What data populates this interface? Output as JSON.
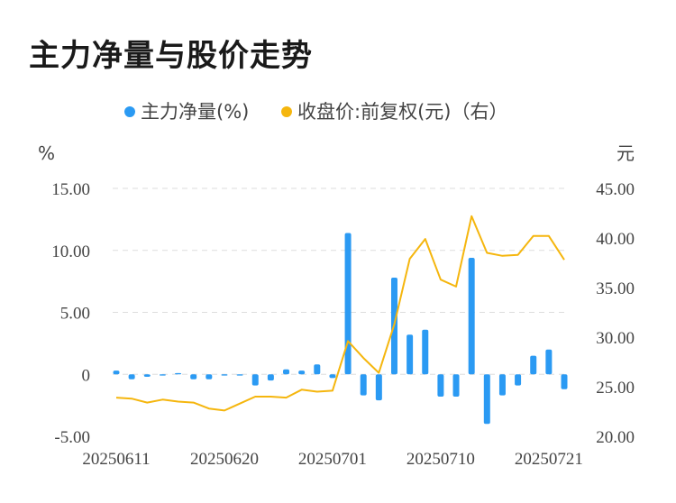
{
  "title": "主力净量与股价走势",
  "chart_data": {
    "type": "bar+line",
    "legend": [
      {
        "name": "主力净量(%)",
        "color": "#2b9af3"
      },
      {
        "name": "收盘价:前复权(元)（右）",
        "color": "#f5b60e"
      }
    ],
    "left_axis": {
      "unit": "%",
      "ticks": [
        "15.00",
        "10.00",
        "5.00",
        "0",
        "-5.00"
      ],
      "min": -5,
      "max": 15
    },
    "right_axis": {
      "unit": "元",
      "ticks": [
        "45.00",
        "40.00",
        "35.00",
        "30.00",
        "25.00",
        "20.00"
      ],
      "min": 20,
      "max": 45
    },
    "x_tick_labels": [
      "20250611",
      "20250620",
      "20250701",
      "20250710",
      "20250721"
    ],
    "x_tick_indices": [
      0,
      7,
      14,
      21,
      28
    ],
    "dates": [
      "20250611",
      "20250612",
      "20250613",
      "20250616",
      "20250617",
      "20250618",
      "20250619",
      "20250620",
      "20250623",
      "20250624",
      "20250625",
      "20250626",
      "20250627",
      "20250630",
      "20250701",
      "20250702",
      "20250703",
      "20250704",
      "20250707",
      "20250708",
      "20250709",
      "20250710",
      "20250711",
      "20250714",
      "20250715",
      "20250716",
      "20250717",
      "20250718",
      "20250721",
      "20250722"
    ],
    "series": [
      {
        "name": "主力净量(%)",
        "type": "bar",
        "axis": "left",
        "values": [
          0.3,
          -0.4,
          -0.2,
          -0.1,
          0.1,
          -0.4,
          -0.4,
          -0.1,
          -0.1,
          -0.9,
          -0.5,
          0.4,
          0.3,
          0.8,
          -0.3,
          11.4,
          -1.7,
          -2.1,
          7.8,
          3.2,
          3.6,
          -1.8,
          -1.8,
          9.4,
          -4.0,
          -1.7,
          -0.9,
          1.5,
          2.0,
          -1.2
        ]
      },
      {
        "name": "收盘价:前复权(元)（右）",
        "type": "line",
        "axis": "right",
        "values": [
          23.9,
          23.8,
          23.4,
          23.7,
          23.5,
          23.4,
          22.8,
          22.6,
          23.3,
          24.0,
          24.0,
          23.9,
          24.7,
          24.5,
          24.6,
          29.6,
          27.9,
          26.4,
          31.3,
          37.9,
          39.9,
          35.8,
          35.1,
          42.2,
          38.5,
          38.2,
          38.3,
          40.2,
          40.2,
          37.8
        ]
      }
    ]
  }
}
